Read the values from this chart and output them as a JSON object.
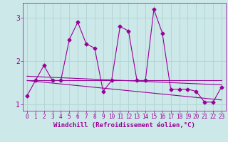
{
  "xlabel": "Windchill (Refroidissement éolien,°C)",
  "background_color": "#cce8e8",
  "line_color": "#990099",
  "x_values": [
    0,
    1,
    2,
    3,
    4,
    5,
    6,
    7,
    8,
    9,
    10,
    11,
    12,
    13,
    14,
    15,
    16,
    17,
    18,
    19,
    20,
    21,
    22,
    23
  ],
  "y_main": [
    1.2,
    1.55,
    1.9,
    1.55,
    1.55,
    2.5,
    2.9,
    2.4,
    2.3,
    1.3,
    1.55,
    2.8,
    2.7,
    1.55,
    1.55,
    3.2,
    2.65,
    1.35,
    1.35,
    1.35,
    1.3,
    1.05,
    1.05,
    1.4
  ],
  "y_trend1_start": 1.55,
  "y_trend1_end": 1.55,
  "y_trend2_start": 1.65,
  "y_trend2_end": 1.45,
  "y_trend3_start": 1.55,
  "y_trend3_end": 1.1,
  "ylim": [
    0.85,
    3.35
  ],
  "yticks": [
    1,
    2,
    3
  ],
  "xlim": [
    -0.5,
    23.5
  ],
  "grid_color": "#aacfcf",
  "marker": "D",
  "marker_size": 2.5,
  "line_width": 0.8,
  "font_color": "#990099",
  "label_fontsize": 6.5,
  "tick_fontsize": 5.5
}
